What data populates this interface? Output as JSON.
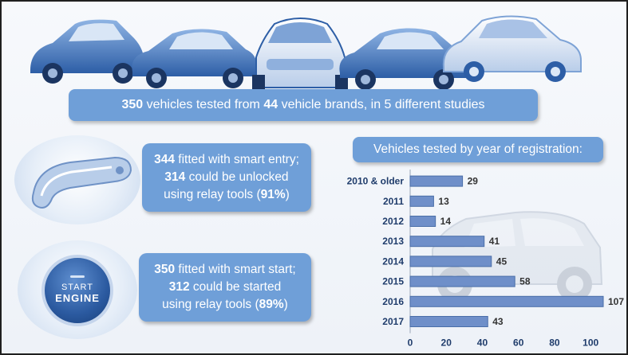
{
  "banner": {
    "vehicles": "350",
    "text_a": " vehicles tested from ",
    "brands": "44",
    "text_b": " vehicle brands, in 5 different studies"
  },
  "smart_entry": {
    "icon": "car-door-handle-icon",
    "count": "344",
    "line1": " fitted with smart entry;",
    "count2": "314",
    "line2": " could be unlocked",
    "line3_a": "using relay tools (",
    "pct": "91%",
    "line3_b": ")"
  },
  "smart_start": {
    "icon": "start-engine-button-icon",
    "button_line1": "START",
    "button_line2": "ENGINE",
    "count": "350",
    "line1": " fitted with smart start;",
    "count2": "312",
    "line2": " could be started",
    "line3_a": "using relay tools (",
    "pct": "89%",
    "line3_b": ")"
  },
  "colors": {
    "accent": "#6f9fd8",
    "bar": "#6f8fc9",
    "bar_edge": "#4a6ea8"
  },
  "chart_data": {
    "type": "bar",
    "orientation": "horizontal",
    "title": "Vehicles tested by year of registration:",
    "categories": [
      "2010 & older",
      "2011",
      "2012",
      "2013",
      "2014",
      "2015",
      "2016",
      "2017"
    ],
    "values": [
      29,
      13,
      14,
      41,
      45,
      58,
      107,
      43
    ],
    "xlim": [
      0,
      107
    ],
    "xticks": [
      0,
      20,
      40,
      60,
      80,
      100
    ],
    "grid": false,
    "data_labels": true
  }
}
